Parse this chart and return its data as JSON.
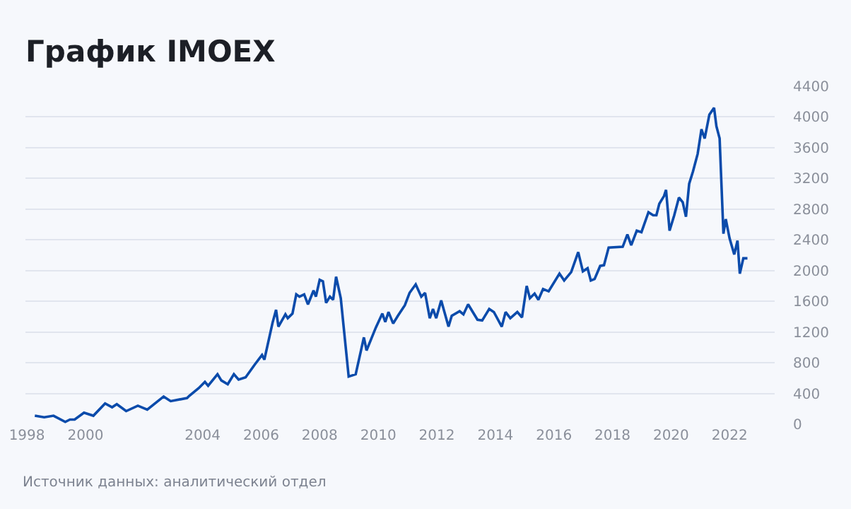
{
  "chart_data": {
    "type": "line",
    "title": "График IMOEX",
    "annotations": [
      "Источник данных: аналитический отдел"
    ],
    "x": [
      1998.27,
      1998.59,
      1998.91,
      1999.31,
      1999.47,
      1999.63,
      1999.95,
      2000.27,
      2000.67,
      2000.91,
      2001.07,
      2001.39,
      2001.79,
      2002.11,
      2002.67,
      2002.91,
      2003.47,
      2003.55,
      2003.87,
      2004.08,
      2004.19,
      2004.51,
      2004.64,
      2004.86,
      2005.07,
      2005.23,
      2005.47,
      2005.79,
      2006.03,
      2006.11,
      2006.39,
      2006.51,
      2006.59,
      2006.83,
      2006.91,
      2007.07,
      2007.2,
      2007.31,
      2007.47,
      2007.6,
      2007.79,
      2007.87,
      2008.0,
      2008.11,
      2008.22,
      2008.35,
      2008.46,
      2008.56,
      2008.72,
      2008.99,
      2009.23,
      2009.51,
      2009.6,
      2009.92,
      2010.14,
      2010.24,
      2010.35,
      2010.51,
      2010.67,
      2010.91,
      2011.07,
      2011.28,
      2011.47,
      2011.6,
      2011.76,
      2011.87,
      2011.98,
      2012.15,
      2012.4,
      2012.51,
      2012.78,
      2012.91,
      2013.07,
      2013.39,
      2013.55,
      2013.79,
      2013.95,
      2014.22,
      2014.35,
      2014.51,
      2014.75,
      2014.91,
      2015.07,
      2015.18,
      2015.34,
      2015.47,
      2015.63,
      2015.82,
      2016.19,
      2016.35,
      2016.59,
      2016.83,
      2016.99,
      2017.15,
      2017.26,
      2017.39,
      2017.58,
      2017.71,
      2017.87,
      2018.35,
      2018.51,
      2018.64,
      2018.83,
      2018.99,
      2019.23,
      2019.39,
      2019.5,
      2019.6,
      2019.76,
      2019.83,
      2019.95,
      2020.11,
      2020.27,
      2020.4,
      2020.51,
      2020.62,
      2020.75,
      2020.91,
      2021.04,
      2021.15,
      2021.31,
      2021.47,
      2021.55,
      2021.66,
      2021.79,
      2021.87,
      2022.0,
      2022.16,
      2022.27,
      2022.35,
      2022.47,
      2022.61
    ],
    "series": [
      {
        "color": "#0b4bab",
        "values": [
          110,
          90,
          110,
          30,
          60,
          60,
          150,
          110,
          270,
          220,
          260,
          170,
          240,
          190,
          360,
          300,
          340,
          370,
          470,
          550,
          500,
          650,
          570,
          520,
          650,
          580,
          610,
          780,
          900,
          840,
          1320,
          1490,
          1270,
          1430,
          1380,
          1440,
          1690,
          1660,
          1690,
          1560,
          1740,
          1660,
          1880,
          1860,
          1580,
          1660,
          1620,
          1920,
          1640,
          620,
          650,
          1130,
          960,
          1260,
          1440,
          1330,
          1460,
          1310,
          1410,
          1550,
          1710,
          1820,
          1660,
          1710,
          1380,
          1500,
          1380,
          1610,
          1270,
          1410,
          1470,
          1430,
          1560,
          1360,
          1350,
          1500,
          1460,
          1270,
          1460,
          1380,
          1460,
          1390,
          1800,
          1640,
          1700,
          1620,
          1760,
          1730,
          1960,
          1870,
          1980,
          2240,
          1990,
          2030,
          1870,
          1890,
          2060,
          2070,
          2300,
          2310,
          2470,
          2330,
          2520,
          2500,
          2760,
          2720,
          2720,
          2870,
          2970,
          3050,
          2520,
          2720,
          2950,
          2890,
          2700,
          3130,
          3290,
          3520,
          3840,
          3720,
          4030,
          4120,
          3880,
          3720,
          2480,
          2670,
          2420,
          2210,
          2390,
          1960,
          2160,
          2160
        ]
      }
    ],
    "xlim": [
      1997.95,
      2023.54
    ],
    "xticks": [
      1998,
      2000,
      2004,
      2006,
      2008,
      2010,
      2012,
      2014,
      2016,
      2018,
      2020,
      2022
    ],
    "ylim": [
      0,
      4400
    ],
    "yticks": [
      0,
      400,
      800,
      1200,
      1600,
      2000,
      2400,
      2800,
      3200,
      3600,
      4000,
      4400
    ],
    "grid": "y",
    "marker": "none",
    "line_style": "solid"
  }
}
